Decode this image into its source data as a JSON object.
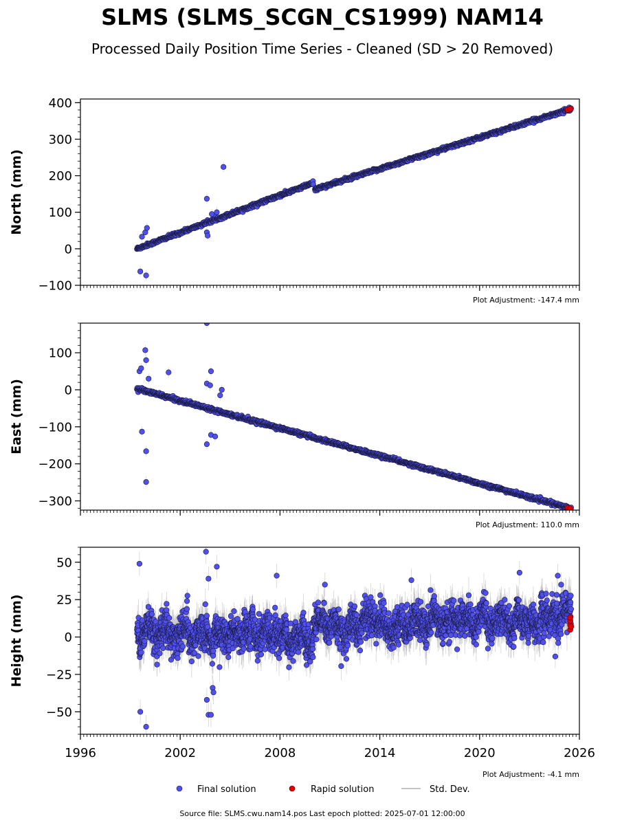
{
  "page": {
    "title": "SLMS (SLMS_SCGN_CS1999) NAM14",
    "subtitle": "Processed Daily Position Time Series - Cleaned (SD > 20 Removed)",
    "source_line": "Source file: SLMS.cwu.nam14.pos  Last epoch plotted: 2025-07-01 12:00:00"
  },
  "colors": {
    "final": "#5050ee",
    "final_edge": "#1a1a40",
    "rapid": "#e00000",
    "stddev": "#b0b0b0"
  },
  "legend": {
    "final": "Final solution",
    "rapid": "Rapid solution",
    "stddev": "Std. Dev."
  },
  "chart_data": [
    {
      "type": "scatter",
      "ylabel": "North (mm)",
      "adjustment": "Plot Adjustment: -147.4 mm",
      "xlim": [
        1996,
        2026
      ],
      "ylim": [
        -100,
        410
      ],
      "yticks": [
        -100,
        0,
        100,
        200,
        300,
        400
      ],
      "xticks": [
        1996,
        2002,
        2008,
        2014,
        2020,
        2026
      ],
      "show_xtick_labels": false,
      "trend_segments": [
        {
          "x": [
            1999.4,
            2010.0
          ],
          "y": [
            0,
            180
          ]
        },
        {
          "x": [
            2010.1,
            2025.5
          ],
          "y": [
            163,
            383
          ]
        }
      ],
      "noise": 4,
      "outliers": [
        {
          "x": 1999.6,
          "y": -62
        },
        {
          "x": 1999.95,
          "y": -73
        },
        {
          "x": 1999.7,
          "y": 33
        },
        {
          "x": 1999.9,
          "y": 45
        },
        {
          "x": 2000.0,
          "y": 57
        },
        {
          "x": 2003.6,
          "y": 137
        },
        {
          "x": 2003.6,
          "y": 45
        },
        {
          "x": 2003.65,
          "y": 36
        },
        {
          "x": 2004.6,
          "y": 224
        },
        {
          "x": 2003.9,
          "y": 95
        },
        {
          "x": 2004.2,
          "y": 100
        }
      ],
      "rapid": [
        {
          "x": 2025.3,
          "y": 381
        },
        {
          "x": 2025.45,
          "y": 383
        }
      ]
    },
    {
      "type": "scatter",
      "ylabel": "East (mm)",
      "adjustment": "Plot Adjustment: 110.0 mm",
      "xlim": [
        1996,
        2026
      ],
      "ylim": [
        -325,
        180
      ],
      "yticks": [
        -300,
        -200,
        -100,
        0,
        100
      ],
      "xticks": [
        1996,
        2002,
        2008,
        2014,
        2020,
        2026
      ],
      "show_xtick_labels": false,
      "trend_segments": [
        {
          "x": [
            1999.4,
            2025.5
          ],
          "y": [
            3,
            -321
          ]
        }
      ],
      "noise": 4,
      "outliers": [
        {
          "x": 1999.55,
          "y": 50
        },
        {
          "x": 1999.65,
          "y": 58
        },
        {
          "x": 1999.9,
          "y": 107
        },
        {
          "x": 1999.95,
          "y": 80
        },
        {
          "x": 2000.1,
          "y": 30
        },
        {
          "x": 1999.7,
          "y": -113
        },
        {
          "x": 1999.95,
          "y": -166
        },
        {
          "x": 1999.95,
          "y": -249
        },
        {
          "x": 2001.3,
          "y": 47
        },
        {
          "x": 2003.6,
          "y": 180
        },
        {
          "x": 2003.6,
          "y": 17
        },
        {
          "x": 2003.85,
          "y": 50
        },
        {
          "x": 2003.8,
          "y": 12
        },
        {
          "x": 2004.5,
          "y": 0
        },
        {
          "x": 2004.4,
          "y": -15
        },
        {
          "x": 2003.6,
          "y": -147
        },
        {
          "x": 2003.85,
          "y": -122
        },
        {
          "x": 2004.1,
          "y": -126
        }
      ],
      "rapid": [
        {
          "x": 2025.3,
          "y": -319
        },
        {
          "x": 2025.45,
          "y": -321
        }
      ]
    },
    {
      "type": "scatter",
      "ylabel": "Height (mm)",
      "adjustment": "Plot Adjustment: -4.1 mm",
      "xlim": [
        1996,
        2026
      ],
      "ylim": [
        -65,
        60
      ],
      "yticks": [
        -50,
        -25,
        0,
        25,
        50
      ],
      "xticks": [
        1996,
        2002,
        2008,
        2014,
        2020,
        2026
      ],
      "show_xtick_labels": true,
      "trend_segments": [
        {
          "x": [
            1999.4,
            2010.0
          ],
          "y": [
            3,
            0
          ]
        },
        {
          "x": [
            2010.0,
            2025.5
          ],
          "y": [
            8,
            13
          ]
        }
      ],
      "noise": 8,
      "outliers": [
        {
          "x": 1999.55,
          "y": 49
        },
        {
          "x": 1999.6,
          "y": -50
        },
        {
          "x": 1999.95,
          "y": -60
        },
        {
          "x": 2003.55,
          "y": 57
        },
        {
          "x": 2003.7,
          "y": 39
        },
        {
          "x": 2004.2,
          "y": 47
        },
        {
          "x": 2003.6,
          "y": -42
        },
        {
          "x": 2003.7,
          "y": -52
        },
        {
          "x": 2003.85,
          "y": -52
        },
        {
          "x": 2003.95,
          "y": -34
        },
        {
          "x": 2004.0,
          "y": -37
        },
        {
          "x": 2007.8,
          "y": 41
        },
        {
          "x": 2022.4,
          "y": 43
        },
        {
          "x": 2024.7,
          "y": 41
        },
        {
          "x": 2024.9,
          "y": 35
        },
        {
          "x": 2024.55,
          "y": -13
        },
        {
          "x": 2015.9,
          "y": 38
        },
        {
          "x": 2010.7,
          "y": 35
        }
      ],
      "rapid": [
        {
          "x": 2025.45,
          "y": 5
        },
        {
          "x": 2025.45,
          "y": 8
        },
        {
          "x": 2025.45,
          "y": 11
        },
        {
          "x": 2025.45,
          "y": 13
        },
        {
          "x": 2025.5,
          "y": 7
        }
      ]
    }
  ]
}
